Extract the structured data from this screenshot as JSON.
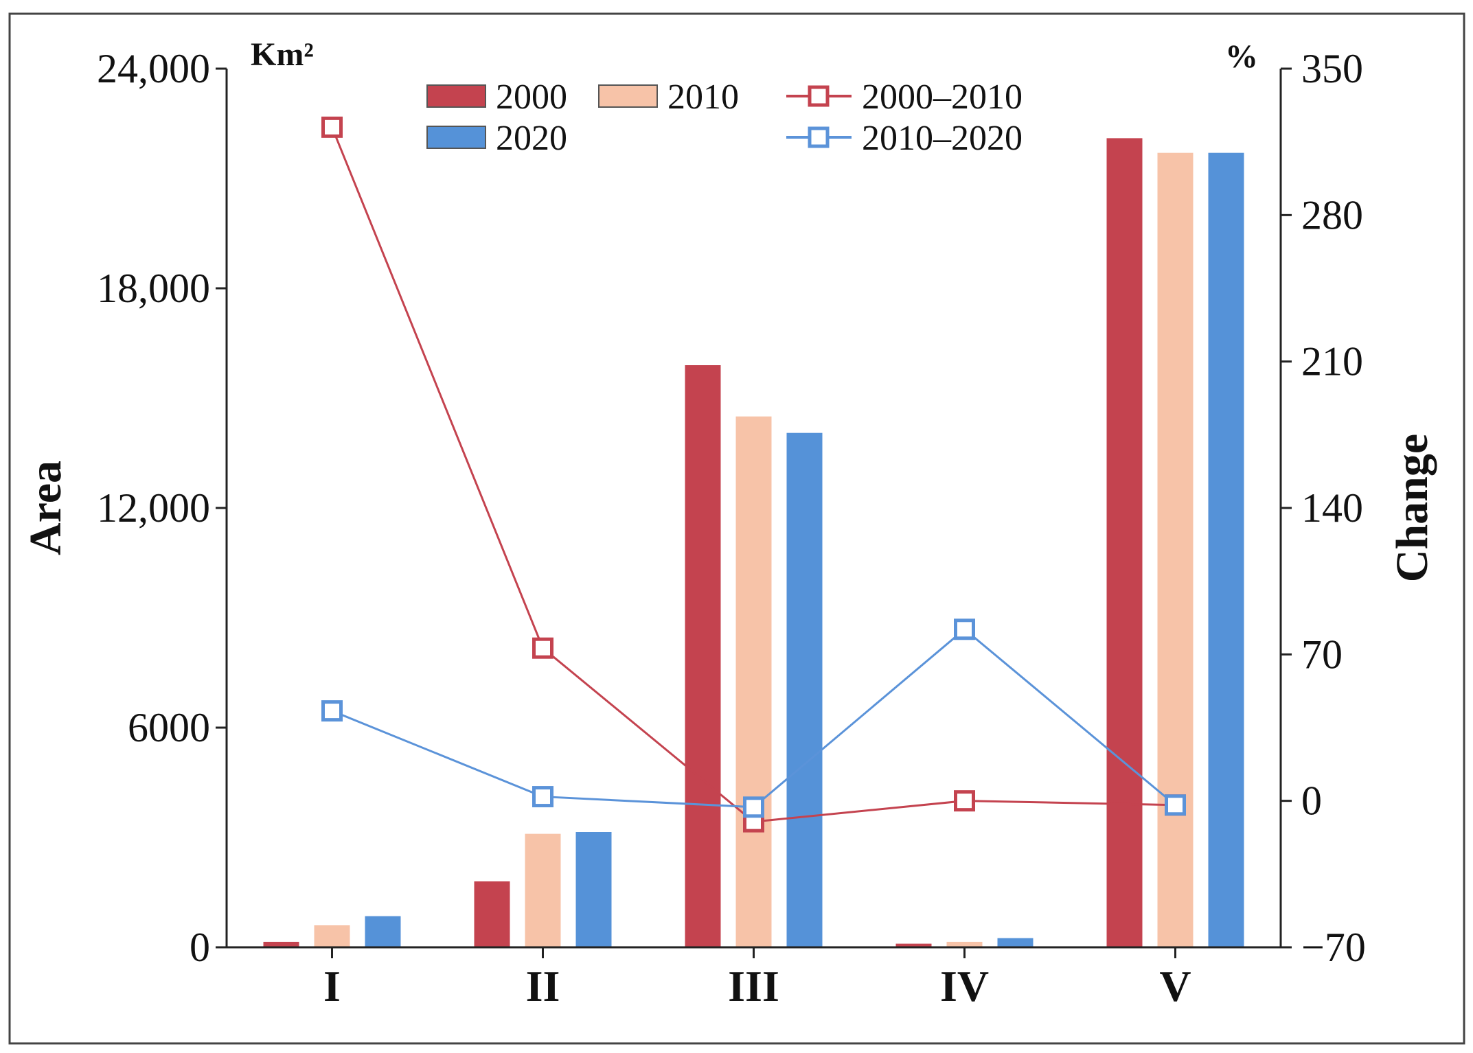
{
  "chart_data": {
    "type": "bar+line",
    "categories": [
      "I",
      "II",
      "III",
      "IV",
      "V"
    ],
    "bar_series": [
      {
        "name": "2000",
        "color": "#c4434f",
        "values": [
          150,
          1800,
          15900,
          100,
          22100
        ]
      },
      {
        "name": "2010",
        "color": "#f7c3a8",
        "values": [
          600,
          3100,
          14500,
          150,
          21700
        ]
      },
      {
        "name": "2020",
        "color": "#5592d8",
        "values": [
          850,
          3150,
          14050,
          250,
          21700
        ]
      }
    ],
    "line_series": [
      {
        "name": "2000–2010",
        "color": "#c4434f",
        "values": [
          322,
          73,
          -10,
          0,
          -2
        ]
      },
      {
        "name": "2010–2020",
        "color": "#5b93d9",
        "values": [
          43,
          2,
          -3,
          82,
          -2
        ]
      }
    ],
    "left_axis": {
      "title": "Area",
      "unit": "Km²",
      "ylim": [
        0,
        24000
      ],
      "ticks": [
        0,
        6000,
        12000,
        18000,
        24000
      ],
      "tick_labels": [
        "0",
        "6000",
        "12,000",
        "18,000",
        "24,000"
      ]
    },
    "right_axis": {
      "title": "Change",
      "unit": "%",
      "ylim": [
        -70,
        350
      ],
      "ticks": [
        -70,
        0,
        70,
        140,
        210,
        280,
        350
      ],
      "tick_labels": [
        "−70",
        "0",
        "70",
        "140",
        "210",
        "280",
        "350"
      ]
    },
    "legend_placement": "top-center"
  }
}
